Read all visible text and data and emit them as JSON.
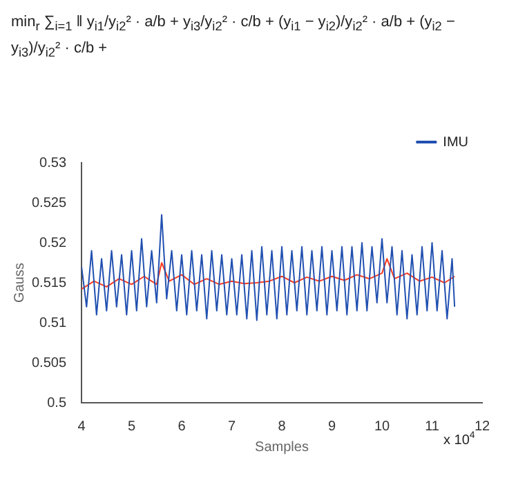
{
  "chart_data": {
    "type": "line",
    "xlabel": "Samples",
    "ylabel": "Gauss",
    "annotations": [
      "min$_{r}$ ∑$_{i=1}$ ‖ y$_{i1}$/y$_{i2}$² · a/b + y$_{i3}$/y$_{i2}$² · c/b + (y$_{i1}$ − y$_{i2}$)/y$_{i2}$² · a/b + (y$_{i2}$ − y$_{i3}$)/y$_{i2}$² · c/b +",
      "x 10$^{4}$"
    ],
    "xlim": [
      4,
      12
    ],
    "xticks": [
      4,
      5,
      6,
      7,
      8,
      9,
      10,
      11,
      12
    ],
    "ylim": [
      0.5,
      0.53
    ],
    "yticks": [
      0.5,
      0.505,
      0.51,
      0.515,
      0.52,
      0.525,
      0.53
    ],
    "grid": false,
    "legend": "top right",
    "marker": "none",
    "line_style": "solid",
    "series": [
      {
        "name": "IMU",
        "color": "#2150b0",
        "x": [
          4.0,
          4.1,
          4.2,
          4.3,
          4.4,
          4.5,
          4.6,
          4.7,
          4.8,
          4.9,
          5.0,
          5.1,
          5.2,
          5.3,
          5.4,
          5.5,
          5.6,
          5.7,
          5.8,
          5.9,
          6.0,
          6.1,
          6.2,
          6.3,
          6.4,
          6.5,
          6.6,
          6.7,
          6.8,
          6.9,
          7.0,
          7.1,
          7.2,
          7.3,
          7.4,
          7.5,
          7.6,
          7.7,
          7.8,
          7.9,
          8.0,
          8.1,
          8.2,
          8.3,
          8.4,
          8.5,
          8.6,
          8.7,
          8.8,
          8.9,
          9.0,
          9.1,
          9.2,
          9.3,
          9.4,
          9.5,
          9.6,
          9.7,
          9.8,
          9.9,
          10.0,
          10.1,
          10.2,
          10.3,
          10.4,
          10.5,
          10.6,
          10.7,
          10.8,
          10.9,
          11.0,
          11.1,
          11.2,
          11.3,
          11.4,
          11.45
        ],
        "values": [
          0.517,
          0.512,
          0.519,
          0.511,
          0.518,
          0.5115,
          0.519,
          0.512,
          0.5185,
          0.511,
          0.519,
          0.5115,
          0.5205,
          0.512,
          0.519,
          0.5125,
          0.5235,
          0.513,
          0.519,
          0.5115,
          0.5185,
          0.511,
          0.519,
          0.5115,
          0.5185,
          0.5105,
          0.519,
          0.5115,
          0.5185,
          0.511,
          0.518,
          0.511,
          0.5185,
          0.5105,
          0.519,
          0.5103,
          0.5195,
          0.511,
          0.519,
          0.5105,
          0.5195,
          0.511,
          0.519,
          0.5115,
          0.5195,
          0.511,
          0.519,
          0.5115,
          0.5195,
          0.511,
          0.519,
          0.5115,
          0.5195,
          0.511,
          0.5195,
          0.5115,
          0.52,
          0.5115,
          0.5195,
          0.5125,
          0.5205,
          0.5125,
          0.5195,
          0.511,
          0.519,
          0.5105,
          0.5185,
          0.511,
          0.5195,
          0.5115,
          0.52,
          0.5115,
          0.519,
          0.5105,
          0.518,
          0.512
        ]
      },
      {
        "color": "#ff3b1f",
        "x": [
          4.0,
          4.25,
          4.5,
          4.75,
          5.0,
          5.25,
          5.5,
          5.6,
          5.75,
          6.0,
          6.25,
          6.5,
          6.75,
          7.0,
          7.25,
          7.5,
          7.75,
          8.0,
          8.25,
          8.5,
          8.75,
          9.0,
          9.25,
          9.5,
          9.75,
          10.0,
          10.1,
          10.25,
          10.5,
          10.75,
          11.0,
          11.25,
          11.45
        ],
        "values": [
          0.5142,
          0.5152,
          0.5145,
          0.5155,
          0.5148,
          0.5158,
          0.5148,
          0.5175,
          0.5152,
          0.516,
          0.5148,
          0.5155,
          0.5148,
          0.5152,
          0.5149,
          0.515,
          0.5152,
          0.5158,
          0.515,
          0.5157,
          0.5152,
          0.5158,
          0.5153,
          0.516,
          0.5155,
          0.5162,
          0.518,
          0.5155,
          0.5162,
          0.5152,
          0.5157,
          0.515,
          0.5158
        ]
      }
    ]
  }
}
